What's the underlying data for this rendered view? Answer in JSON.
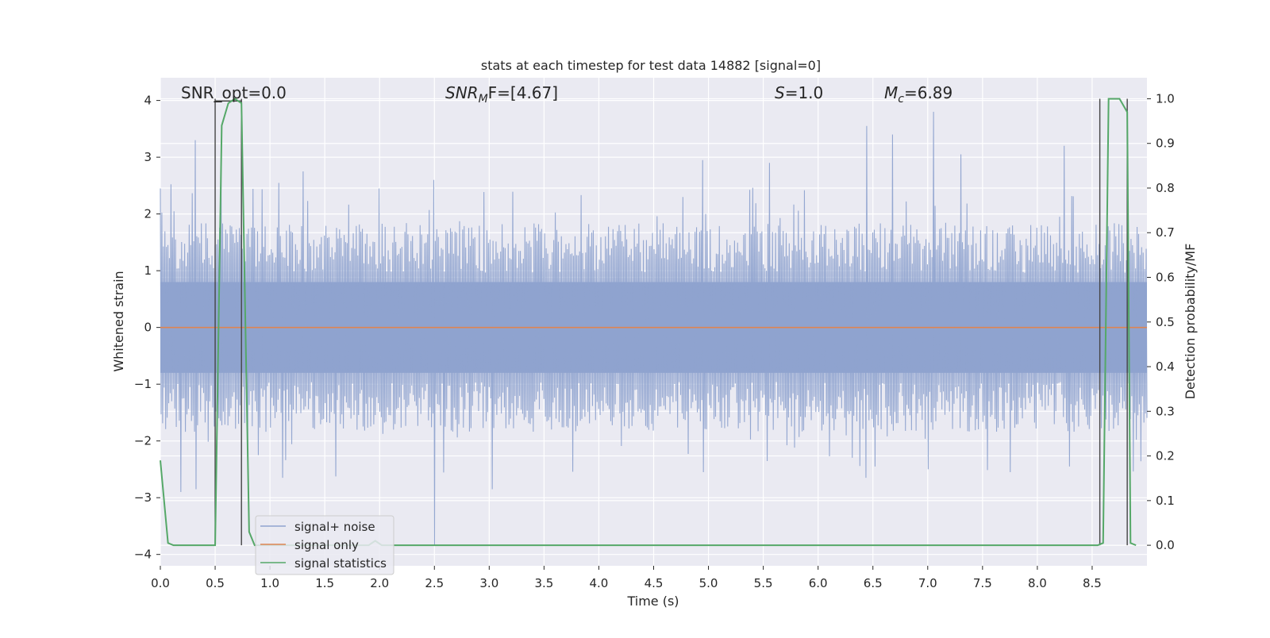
{
  "chart_data": {
    "type": "line",
    "title": "stats at each timestep for test data 14882 [signal=0]",
    "xlabel": "Time (s)",
    "ylabel": "Whitened strain",
    "y2label": "Detection probability/MF",
    "xlim": [
      0.0,
      9.0
    ],
    "ylim": [
      -4.2,
      4.4
    ],
    "y2lim": [
      -0.046,
      1.047
    ],
    "xticks": [
      "0.0",
      "0.5",
      "1.0",
      "1.5",
      "2.0",
      "2.5",
      "3.0",
      "3.5",
      "4.0",
      "4.5",
      "5.0",
      "5.5",
      "6.0",
      "6.5",
      "7.0",
      "7.5",
      "8.0",
      "8.5"
    ],
    "yticks": [
      "4",
      "3",
      "2",
      "1",
      "0",
      "−1",
      "−2",
      "−3",
      "−4"
    ],
    "y2ticks": [
      "1.0",
      "0.9",
      "0.8",
      "0.7",
      "0.6",
      "0.5",
      "0.4",
      "0.3",
      "0.2",
      "0.1",
      "0.0"
    ],
    "grid": true,
    "legend_position": "lower-left",
    "annotations": {
      "snr_opt": "SNR_opt=0.0",
      "snr_mf_base": "SNR",
      "snr_mf_sub": "M",
      "snr_mf_rest": "F=[4.67]",
      "s_label": "S",
      "s_rest": "=1.0",
      "mc_base": "M",
      "mc_sub": "c",
      "mc_rest": "=6.89"
    },
    "series": [
      {
        "name": "signal+ noise",
        "color": "#8fa3cf",
        "description_level": "noise amplitude",
        "typical_range": [
          -1.6,
          1.6
        ],
        "envelope_peaks_upper": [
          [
            0.0,
            2.45
          ],
          [
            0.32,
            3.3
          ],
          [
            0.56,
            2.9
          ],
          [
            1.3,
            2.75
          ],
          [
            2.5,
            2.6
          ],
          [
            4.95,
            2.95
          ],
          [
            5.55,
            2.9
          ],
          [
            6.45,
            3.55
          ],
          [
            6.68,
            3.4
          ],
          [
            7.05,
            3.8
          ],
          [
            7.3,
            3.05
          ],
          [
            8.25,
            3.2
          ]
        ],
        "envelope_peaks_lower": [
          [
            0.19,
            -2.9
          ],
          [
            0.32,
            -2.85
          ],
          [
            1.12,
            -2.65
          ],
          [
            2.5,
            -3.85
          ],
          [
            3.03,
            -2.85
          ],
          [
            4.95,
            -2.55
          ],
          [
            6.43,
            -2.65
          ],
          [
            7.0,
            -2.5
          ],
          [
            7.75,
            -2.55
          ],
          [
            8.3,
            -2.45
          ]
        ]
      },
      {
        "name": "signal only",
        "color": "#dd8452",
        "x": [
          0.0,
          9.0
        ],
        "y": [
          0.0,
          0.0
        ]
      },
      {
        "name": "signal statistics",
        "color": "#55a868",
        "axis": "right",
        "x": [
          0.0,
          0.07,
          0.12,
          0.5,
          0.56,
          0.62,
          0.68,
          0.74,
          0.81,
          0.86,
          1.9,
          1.96,
          2.02,
          8.55,
          8.6,
          8.65,
          8.7,
          8.75,
          8.82,
          8.85,
          8.9
        ],
        "y": [
          0.19,
          0.005,
          0.0,
          0.0,
          0.94,
          0.99,
          1.0,
          0.99,
          0.03,
          0.0,
          0.0,
          0.01,
          0.0,
          0.0,
          0.005,
          1.0,
          1.0,
          1.0,
          0.97,
          0.005,
          0.0
        ]
      }
    ],
    "vertical_lines": [
      0.5,
      0.74,
      8.57,
      8.82
    ]
  }
}
